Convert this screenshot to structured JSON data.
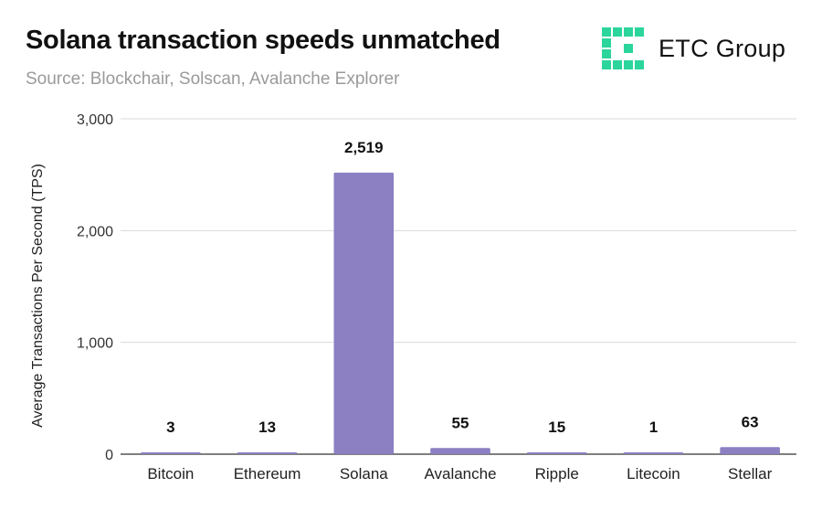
{
  "header": {
    "title": "Solana transaction speeds unmatched",
    "subtitle": "Source: Blockchair, Solscan, Avalanche Explorer"
  },
  "logo": {
    "text": "ETC Group",
    "icon": "etc-group-logo-mark",
    "color": "#2bd59b"
  },
  "colors": {
    "bar": "#8c7fc2",
    "grid": "#d9d9d9",
    "axis": "#333333"
  },
  "chart_data": {
    "type": "bar",
    "title": "Solana transaction speeds unmatched",
    "subtitle": "Source: Blockchair, Solscan, Avalanche Explorer",
    "xlabel": "",
    "ylabel": "Average Transactions Per Second (TPS)",
    "categories": [
      "Bitcoin",
      "Ethereum",
      "Solana",
      "Avalanche",
      "Ripple",
      "Litecoin",
      "Stellar"
    ],
    "values": [
      3,
      13,
      2519,
      55,
      15,
      1,
      63
    ],
    "value_labels": [
      "3",
      "13",
      "2,519",
      "55",
      "15",
      "1",
      "63"
    ],
    "ylim": [
      0,
      3000
    ],
    "yticks": [
      0,
      1000,
      2000,
      3000
    ],
    "ytick_labels": [
      "0",
      "1,000",
      "2,000",
      "3,000"
    ],
    "grid": true,
    "legend": "none"
  }
}
